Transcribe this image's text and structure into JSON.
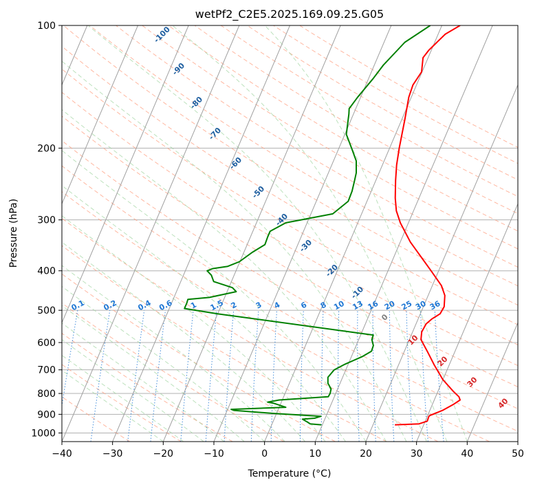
{
  "chart_data": {
    "type": "line",
    "title": "wetPf2_C2E5.2025.169.09.25.G05",
    "xlabel": "Temperature (°C)",
    "ylabel": "Pressure (hPa)",
    "xlim": [
      -40,
      50
    ],
    "ylim": [
      1050,
      100
    ],
    "y_scale": "log",
    "x_ticks": [
      -40,
      -30,
      -20,
      -10,
      0,
      10,
      20,
      30,
      40,
      50
    ],
    "x_tick_labels": [
      "−40",
      "−30",
      "−20",
      "−10",
      "0",
      "10",
      "20",
      "30",
      "40",
      "50"
    ],
    "y_ticks": [
      100,
      200,
      300,
      400,
      500,
      600,
      700,
      800,
      900,
      1000
    ],
    "y_tick_labels": [
      "100",
      "200",
      "300",
      "400",
      "500",
      "600",
      "700",
      "800",
      "900",
      "1000"
    ],
    "grid": true,
    "background_lines": {
      "isotherm_skew_color": "#a0a0a0",
      "dry_adiabat_color": "#ff9f80",
      "moist_adiabat_color": "#9fd49f",
      "mixing_ratio_color": "#1f77d4",
      "dry_adiabat_labels": [
        {
          "label": "0",
          "color": "#808080"
        },
        {
          "label": "10",
          "color": "#d62728"
        },
        {
          "label": "20",
          "color": "#d62728"
        },
        {
          "label": "30",
          "color": "#d62728"
        },
        {
          "label": "40",
          "color": "#d62728"
        }
      ],
      "isotherm_labels": [
        "-100",
        "-90",
        "-80",
        "-70",
        "-60",
        "-50",
        "-40",
        "-30",
        "-20",
        "-10"
      ],
      "mixing_ratio_labels": [
        "0.1",
        "0.2",
        "0.4",
        "0.6",
        "1",
        "1.5",
        "2",
        "3",
        "4",
        "6",
        "8",
        "10",
        "13",
        "16",
        "20",
        "25",
        "30",
        "36"
      ],
      "isotherm_label_color": "#1f5fa0",
      "mixing_label_color": "#1f77d4"
    },
    "series": [
      {
        "color": "#ff0000",
        "values": [
          [
            24.3,
            955
          ],
          [
            29.0,
            950
          ],
          [
            30.4,
            935
          ],
          [
            30.3,
            910
          ],
          [
            30.5,
            905
          ],
          [
            32.5,
            880
          ],
          [
            34.2,
            850
          ],
          [
            35.1,
            830
          ],
          [
            34.6,
            815
          ],
          [
            33.0,
            790
          ],
          [
            30.0,
            740
          ],
          [
            27.0,
            680
          ],
          [
            24.5,
            630
          ],
          [
            22.3,
            590
          ],
          [
            21.8,
            565
          ],
          [
            22.0,
            540
          ],
          [
            22.7,
            525
          ],
          [
            23.9,
            510
          ],
          [
            24.1,
            490
          ],
          [
            23.3,
            460
          ],
          [
            21.8,
            435
          ],
          [
            18.5,
            400
          ],
          [
            12.0,
            340
          ],
          [
            8.4,
            305
          ],
          [
            6.6,
            285
          ],
          [
            5.3,
            265
          ],
          [
            3.9,
            240
          ],
          [
            2.8,
            220
          ],
          [
            1.9,
            200
          ],
          [
            0.6,
            170
          ],
          [
            -0.5,
            150
          ],
          [
            -0.7,
            140
          ],
          [
            -0.1,
            130
          ],
          [
            -1.0,
            120
          ],
          [
            -0.5,
            115
          ],
          [
            1.4,
            105
          ],
          [
            3.6,
            100
          ]
        ]
      },
      {
        "color": "#008000",
        "values": [
          [
            9.8,
            955
          ],
          [
            7.5,
            950
          ],
          [
            6.8,
            940
          ],
          [
            5.6,
            925
          ],
          [
            7.9,
            920
          ],
          [
            9.0,
            910
          ],
          [
            -0.9,
            895
          ],
          [
            -8.7,
            880
          ],
          [
            -9.3,
            875
          ],
          [
            1.3,
            865
          ],
          [
            -1.5,
            845
          ],
          [
            -2.7,
            840
          ],
          [
            -0.6,
            830
          ],
          [
            8.8,
            815
          ],
          [
            8.9,
            800
          ],
          [
            8.7,
            780
          ],
          [
            7.6,
            755
          ],
          [
            7.1,
            730
          ],
          [
            7.7,
            700
          ],
          [
            9.2,
            680
          ],
          [
            12.1,
            650
          ],
          [
            13.5,
            630
          ],
          [
            13.4,
            610
          ],
          [
            12.6,
            590
          ],
          [
            12.5,
            575
          ],
          [
            -20.0,
            510
          ],
          [
            -27.0,
            495
          ],
          [
            -27.0,
            480
          ],
          [
            -27.1,
            470
          ],
          [
            -23.0,
            465
          ],
          [
            -18.2,
            450
          ],
          [
            -19.3,
            440
          ],
          [
            -23.5,
            425
          ],
          [
            -24.5,
            410
          ],
          [
            -25.7,
            400
          ],
          [
            -24.8,
            395
          ],
          [
            -22.0,
            390
          ],
          [
            -20.1,
            380
          ],
          [
            -18.3,
            360
          ],
          [
            -16.5,
            345
          ],
          [
            -16.6,
            330
          ],
          [
            -16.6,
            320
          ],
          [
            -14.2,
            305
          ],
          [
            -5.7,
            290
          ],
          [
            -3.7,
            270
          ],
          [
            -3.8,
            255
          ],
          [
            -4.2,
            240
          ],
          [
            -4.5,
            230
          ],
          [
            -5.5,
            215
          ],
          [
            -7.5,
            200
          ],
          [
            -9.7,
            185
          ],
          [
            -10.9,
            165
          ],
          [
            -11.3,
            160
          ],
          [
            -10.6,
            150
          ],
          [
            -9.1,
            135
          ],
          [
            -8.2,
            125
          ],
          [
            -6.7,
            115
          ],
          [
            -5.9,
            110
          ],
          [
            -2.3,
            100
          ]
        ]
      }
    ]
  }
}
